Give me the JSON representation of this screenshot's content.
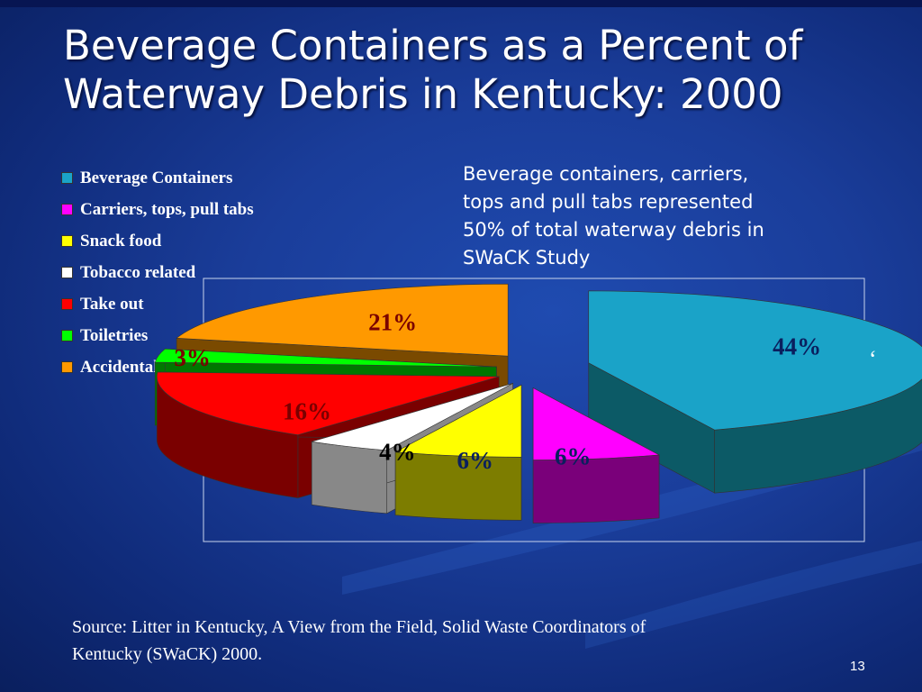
{
  "title": {
    "line1": "Beverage Containers as a Percent of",
    "line2": "Waterway Debris in Kentucky: 2000"
  },
  "note": {
    "line1": "Beverage containers, carriers,",
    "line2": "tops and pull tabs represented",
    "line3": "50% of total waterway debris in",
    "line4": "SWaCK Study"
  },
  "stray_mark": "‘",
  "source": {
    "line1": "Source:  Litter in Kentucky, A View from the Field, Solid Waste Coordinators of",
    "line2": "Kentucky (SWaCK) 2000."
  },
  "page_number": "13",
  "colors": {
    "background": "#1a3d9a",
    "title": "#ffffff"
  },
  "chart_data": {
    "type": "pie",
    "style": "3d-exploded",
    "legend_position": "left",
    "categories": [
      "Beverage Containers",
      "Carriers, tops, pull tabs",
      "Snack food",
      "Tobacco related",
      "Take out",
      "Toiletries",
      "Accidental"
    ],
    "values": [
      44,
      6,
      6,
      4,
      16,
      3,
      21
    ],
    "labels": [
      "44%",
      "6%",
      "6%",
      "4%",
      "16%",
      "3%",
      "21%"
    ],
    "colors": [
      "#1aa3c8",
      "#ff00ff",
      "#ffff00",
      "#ffffff",
      "#ff0000",
      "#00ff00",
      "#ff9900"
    ],
    "side_colors": [
      "#0c5a66",
      "#7a007a",
      "#7d7d00",
      "#888888",
      "#7a0000",
      "#007700",
      "#7a4a00"
    ]
  }
}
